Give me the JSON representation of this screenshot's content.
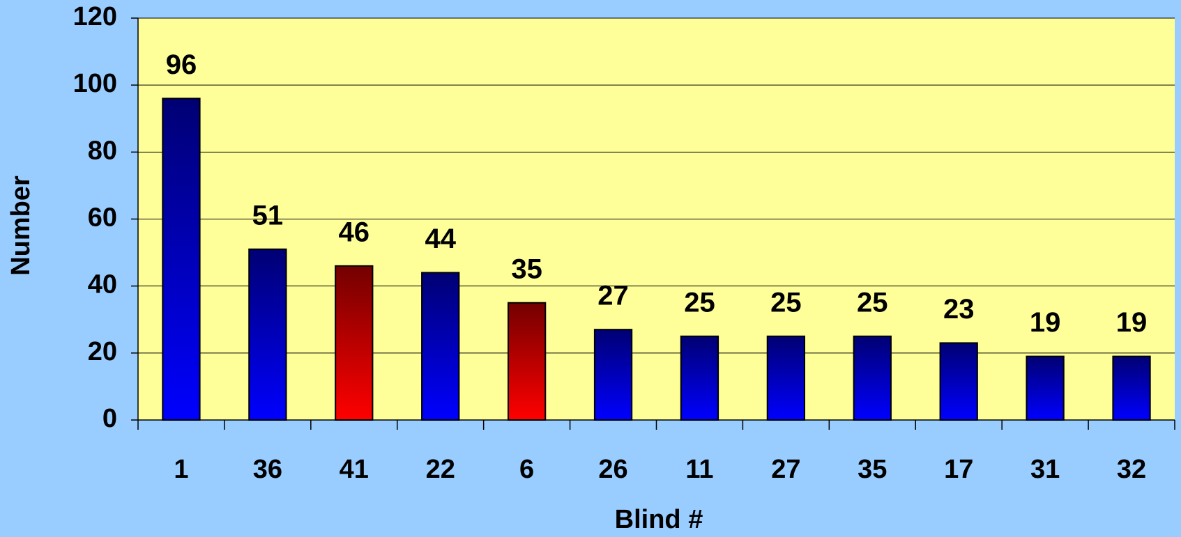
{
  "chart_data": {
    "type": "bar",
    "x_label": "Blind #",
    "y_label": "Number",
    "categories": [
      "1",
      "36",
      "41",
      "22",
      "6",
      "26",
      "11",
      "27",
      "35",
      "17",
      "31",
      "32"
    ],
    "values": [
      96,
      51,
      46,
      44,
      35,
      27,
      25,
      25,
      25,
      23,
      19,
      19
    ],
    "colors": [
      "#0000ff",
      "#0000ff",
      "#ff0000",
      "#0000ff",
      "#ff0000",
      "#0000ff",
      "#0000ff",
      "#0000ff",
      "#0000ff",
      "#0000ff",
      "#0000ff",
      "#0000ff"
    ],
    "ylim": [
      0,
      120
    ],
    "yticks": [
      0,
      20,
      40,
      60,
      80,
      100,
      120
    ],
    "grid": true
  }
}
